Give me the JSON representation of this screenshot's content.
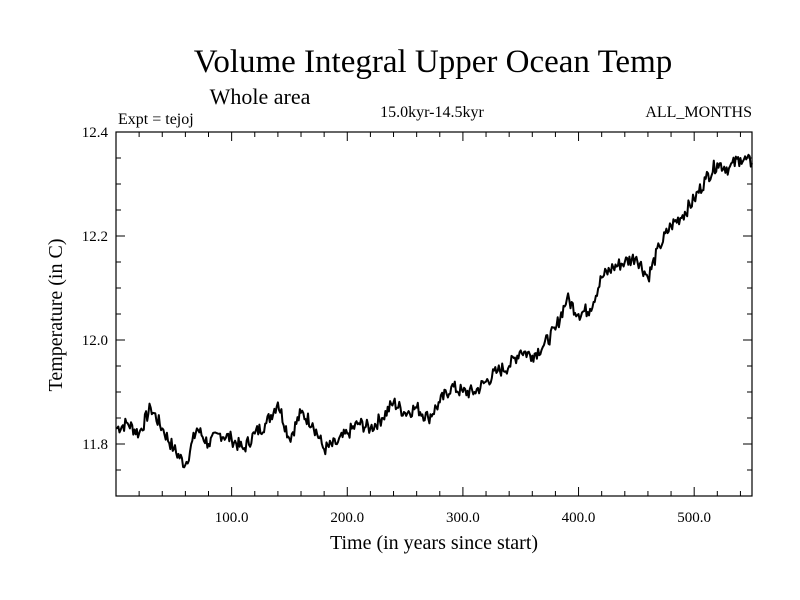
{
  "chart_data": {
    "type": "line",
    "title": "Volume Integral Upper Ocean Temp",
    "subtitle": "Whole area",
    "expt_label": "Expt = tejoj",
    "period_label": "15.0kyr-14.5kyr",
    "months_label": "ALL_MONTHS",
    "xlabel": "Time (in years since start)",
    "ylabel": "Temperature (in C)",
    "xlim": [
      0,
      550
    ],
    "ylim": [
      11.7,
      12.4
    ],
    "x_ticks": [
      100,
      200,
      300,
      400,
      500
    ],
    "x_tick_labels": [
      "100.0",
      "200.0",
      "300.0",
      "400.0",
      "500.0"
    ],
    "y_ticks": [
      11.8,
      12.0,
      12.2,
      12.4
    ],
    "y_tick_labels": [
      "11.8",
      "12.0",
      "12.2",
      "12.4"
    ],
    "grid": false,
    "series": [
      {
        "name": "tejoj",
        "x": [
          0,
          10,
          20,
          30,
          40,
          50,
          60,
          70,
          80,
          90,
          100,
          110,
          120,
          130,
          140,
          150,
          160,
          170,
          180,
          190,
          200,
          210,
          220,
          230,
          240,
          250,
          260,
          270,
          280,
          290,
          300,
          310,
          320,
          330,
          340,
          350,
          360,
          370,
          380,
          390,
          400,
          410,
          420,
          430,
          440,
          450,
          460,
          470,
          480,
          490,
          500,
          510,
          520,
          530,
          540,
          550
        ],
        "values": [
          11.83,
          11.84,
          11.82,
          11.87,
          11.83,
          11.79,
          11.76,
          11.83,
          11.8,
          11.82,
          11.81,
          11.79,
          11.82,
          11.84,
          11.88,
          11.81,
          11.86,
          11.84,
          11.79,
          11.8,
          11.82,
          11.84,
          11.83,
          11.85,
          11.88,
          11.86,
          11.87,
          11.85,
          11.88,
          11.91,
          11.9,
          11.9,
          11.92,
          11.94,
          11.95,
          11.98,
          11.97,
          11.99,
          12.02,
          12.08,
          12.05,
          12.06,
          12.12,
          12.14,
          12.15,
          12.16,
          12.12,
          12.18,
          12.22,
          12.24,
          12.27,
          12.31,
          12.34,
          12.33,
          12.35,
          12.34
        ]
      }
    ]
  }
}
